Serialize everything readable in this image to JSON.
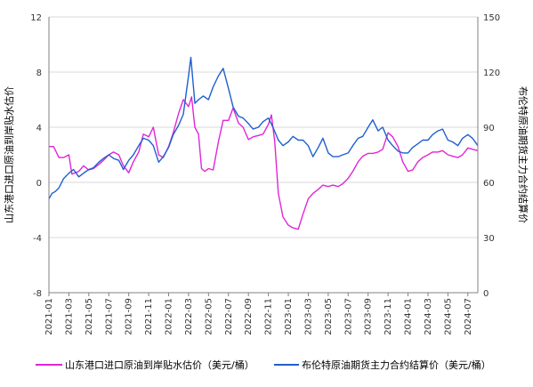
{
  "chart_data": {
    "type": "line",
    "title": "",
    "ylabel_left": "山东港口进口原油到岸贴水估价",
    "ylabel_right": "布伦特原油期货主力合约结算价",
    "ylim_left": [
      -8,
      12
    ],
    "ylim_right": [
      0,
      150
    ],
    "yticks_left": [
      "12",
      "8",
      "4",
      "0",
      "-4",
      "-8"
    ],
    "yticks_right": [
      "150",
      "120",
      "90",
      "60",
      "30",
      "0"
    ],
    "x_categories": [
      "2021-01",
      "2021-03",
      "2021-05",
      "2021-07",
      "2021-09",
      "2021-11",
      "2022-01",
      "2022-03",
      "2022-05",
      "2022-07",
      "2022-09",
      "2022-11",
      "2023-01",
      "2023-03",
      "2023-05",
      "2023-07",
      "2023-09",
      "2023-11",
      "2024-01",
      "2024-03",
      "2024-05",
      "2024-07"
    ],
    "grid": true,
    "legend_position": "bottom",
    "series": [
      {
        "name": "山东港口进口原油到岸贴水估价（美元/桶）",
        "axis": "left",
        "color": "#e026d6",
        "points": [
          [
            "2021-01",
            2.6
          ],
          [
            "2021-01-15",
            2.6
          ],
          [
            "2021-02",
            1.8
          ],
          [
            "2021-02-15",
            1.8
          ],
          [
            "2021-03",
            2.0
          ],
          [
            "2021-03-10",
            0.6
          ],
          [
            "2021-04",
            0.8
          ],
          [
            "2021-04-15",
            1.2
          ],
          [
            "2021-05",
            0.9
          ],
          [
            "2021-05-15",
            1.0
          ],
          [
            "2021-06",
            1.3
          ],
          [
            "2021-06-15",
            1.6
          ],
          [
            "2021-07",
            2.0
          ],
          [
            "2021-07-15",
            2.2
          ],
          [
            "2021-08",
            2.0
          ],
          [
            "2021-08-15",
            1.2
          ],
          [
            "2021-09",
            0.7
          ],
          [
            "2021-09-15",
            1.5
          ],
          [
            "2021-10",
            2.2
          ],
          [
            "2021-10-15",
            3.5
          ],
          [
            "2021-11",
            3.3
          ],
          [
            "2021-11-15",
            4.0
          ],
          [
            "2021-12",
            2.0
          ],
          [
            "2021-12-15",
            1.8
          ],
          [
            "2022-01",
            2.6
          ],
          [
            "2022-01-15",
            3.6
          ],
          [
            "2022-02",
            5.0
          ],
          [
            "2022-02-15",
            6.0
          ],
          [
            "2022-03",
            5.5
          ],
          [
            "2022-03-10",
            6.2
          ],
          [
            "2022-03-20",
            4.0
          ],
          [
            "2022-04",
            3.5
          ],
          [
            "2022-04-10",
            1.0
          ],
          [
            "2022-04-20",
            0.8
          ],
          [
            "2022-05",
            1.0
          ],
          [
            "2022-05-15",
            0.9
          ],
          [
            "2022-06",
            3.0
          ],
          [
            "2022-06-15",
            4.5
          ],
          [
            "2022-07",
            4.5
          ],
          [
            "2022-07-15",
            5.4
          ],
          [
            "2022-08",
            4.3
          ],
          [
            "2022-08-15",
            4.0
          ],
          [
            "2022-09",
            3.1
          ],
          [
            "2022-09-15",
            3.3
          ],
          [
            "2022-10",
            3.4
          ],
          [
            "2022-10-15",
            3.5
          ],
          [
            "2022-11",
            4.2
          ],
          [
            "2022-11-10",
            4.9
          ],
          [
            "2022-11-20",
            3.0
          ],
          [
            "2022-12",
            -0.8
          ],
          [
            "2022-12-15",
            -2.5
          ],
          [
            "2023-01",
            -3.1
          ],
          [
            "2023-01-15",
            -3.3
          ],
          [
            "2023-02",
            -3.4
          ],
          [
            "2023-02-15",
            -2.3
          ],
          [
            "2023-03",
            -1.2
          ],
          [
            "2023-03-15",
            -0.8
          ],
          [
            "2023-04",
            -0.5
          ],
          [
            "2023-04-15",
            -0.2
          ],
          [
            "2023-05",
            -0.3
          ],
          [
            "2023-05-15",
            -0.2
          ],
          [
            "2023-06",
            -0.3
          ],
          [
            "2023-06-15",
            -0.1
          ],
          [
            "2023-07",
            0.3
          ],
          [
            "2023-07-15",
            0.8
          ],
          [
            "2023-08",
            1.5
          ],
          [
            "2023-08-15",
            1.9
          ],
          [
            "2023-09",
            2.1
          ],
          [
            "2023-09-15",
            2.1
          ],
          [
            "2023-10",
            2.2
          ],
          [
            "2023-10-15",
            2.4
          ],
          [
            "2023-11",
            3.6
          ],
          [
            "2023-11-15",
            3.3
          ],
          [
            "2023-12",
            2.6
          ],
          [
            "2023-12-15",
            1.5
          ],
          [
            "2024-01",
            0.8
          ],
          [
            "2024-01-15",
            0.9
          ],
          [
            "2024-02",
            1.5
          ],
          [
            "2024-02-15",
            1.8
          ],
          [
            "2024-03",
            2.0
          ],
          [
            "2024-03-15",
            2.2
          ],
          [
            "2024-04",
            2.2
          ],
          [
            "2024-04-15",
            2.3
          ],
          [
            "2024-05",
            2.0
          ],
          [
            "2024-05-15",
            1.9
          ],
          [
            "2024-06",
            1.8
          ],
          [
            "2024-06-15",
            2.0
          ],
          [
            "2024-07",
            2.5
          ],
          [
            "2024-07-15",
            2.4
          ],
          [
            "2024-08",
            2.3
          ]
        ]
      },
      {
        "name": "布伦特原油期货主力合约结算价（美元/桶）",
        "axis": "right",
        "color": "#1f5fcf",
        "points": [
          [
            "2021-01",
            51
          ],
          [
            "2021-01-10",
            54
          ],
          [
            "2021-01-20",
            55
          ],
          [
            "2021-02",
            57
          ],
          [
            "2021-02-15",
            62
          ],
          [
            "2021-03",
            65
          ],
          [
            "2021-03-15",
            67
          ],
          [
            "2021-04",
            63
          ],
          [
            "2021-04-15",
            65
          ],
          [
            "2021-05",
            67
          ],
          [
            "2021-05-15",
            68
          ],
          [
            "2021-06",
            71
          ],
          [
            "2021-06-15",
            73
          ],
          [
            "2021-07",
            75
          ],
          [
            "2021-07-15",
            73
          ],
          [
            "2021-08",
            72
          ],
          [
            "2021-08-15",
            67
          ],
          [
            "2021-09",
            72
          ],
          [
            "2021-09-15",
            75
          ],
          [
            "2021-10",
            80
          ],
          [
            "2021-10-15",
            84
          ],
          [
            "2021-11",
            83
          ],
          [
            "2021-11-15",
            80
          ],
          [
            "2021-12",
            71
          ],
          [
            "2021-12-15",
            74
          ],
          [
            "2022-01",
            79
          ],
          [
            "2022-01-15",
            86
          ],
          [
            "2022-02",
            91
          ],
          [
            "2022-02-15",
            97
          ],
          [
            "2022-03",
            118
          ],
          [
            "2022-03-08",
            128
          ],
          [
            "2022-03-20",
            103
          ],
          [
            "2022-04",
            105
          ],
          [
            "2022-04-15",
            107
          ],
          [
            "2022-05",
            105
          ],
          [
            "2022-05-15",
            112
          ],
          [
            "2022-06",
            118
          ],
          [
            "2022-06-15",
            122
          ],
          [
            "2022-07",
            111
          ],
          [
            "2022-07-15",
            101
          ],
          [
            "2022-08",
            96
          ],
          [
            "2022-08-15",
            95
          ],
          [
            "2022-09",
            92
          ],
          [
            "2022-09-15",
            89
          ],
          [
            "2022-10",
            90
          ],
          [
            "2022-10-15",
            93
          ],
          [
            "2022-11",
            95
          ],
          [
            "2022-11-15",
            90
          ],
          [
            "2022-12",
            83
          ],
          [
            "2022-12-15",
            80
          ],
          [
            "2023-01",
            82
          ],
          [
            "2023-01-15",
            85
          ],
          [
            "2023-02",
            83
          ],
          [
            "2023-02-15",
            83
          ],
          [
            "2023-03",
            80
          ],
          [
            "2023-03-15",
            74
          ],
          [
            "2023-04",
            79
          ],
          [
            "2023-04-15",
            84
          ],
          [
            "2023-05",
            76
          ],
          [
            "2023-05-15",
            74
          ],
          [
            "2023-06",
            74
          ],
          [
            "2023-06-15",
            75
          ],
          [
            "2023-07",
            76
          ],
          [
            "2023-07-15",
            80
          ],
          [
            "2023-08",
            84
          ],
          [
            "2023-08-15",
            85
          ],
          [
            "2023-09",
            90
          ],
          [
            "2023-09-15",
            94
          ],
          [
            "2023-10",
            88
          ],
          [
            "2023-10-15",
            90
          ],
          [
            "2023-11",
            83
          ],
          [
            "2023-11-15",
            80
          ],
          [
            "2023-12",
            77
          ],
          [
            "2023-12-15",
            76
          ],
          [
            "2024-01",
            76
          ],
          [
            "2024-01-15",
            79
          ],
          [
            "2024-02",
            81
          ],
          [
            "2024-02-15",
            83
          ],
          [
            "2024-03",
            83
          ],
          [
            "2024-03-15",
            86
          ],
          [
            "2024-04",
            88
          ],
          [
            "2024-04-15",
            89
          ],
          [
            "2024-05",
            83
          ],
          [
            "2024-05-15",
            82
          ],
          [
            "2024-06",
            80
          ],
          [
            "2024-06-15",
            84
          ],
          [
            "2024-07",
            86
          ],
          [
            "2024-07-15",
            84
          ],
          [
            "2024-08",
            80
          ]
        ]
      }
    ]
  }
}
